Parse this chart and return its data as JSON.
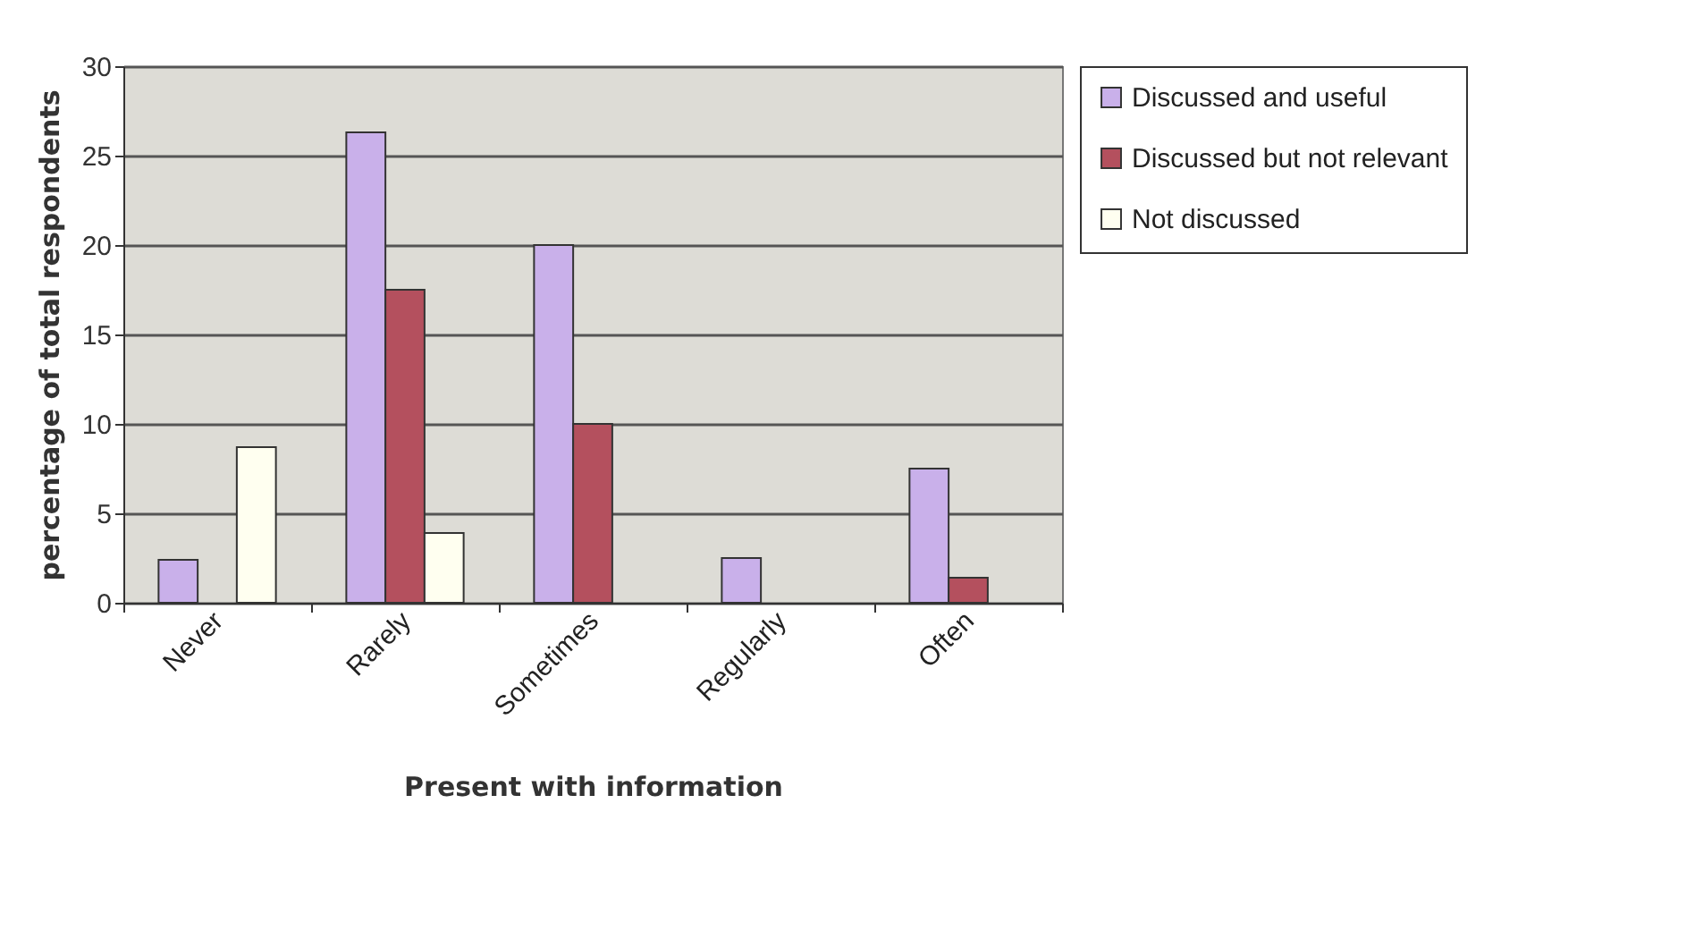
{
  "chart_data": {
    "type": "bar",
    "xlabel": "Present with information",
    "ylabel": "percentage of total respondents",
    "categories": [
      "Never",
      "Rarely",
      "Sometimes",
      "Regularly",
      "Often"
    ],
    "series": [
      {
        "name": "Discussed and useful",
        "color": "#c9b0ea",
        "values": [
          2.4,
          26.3,
          20,
          2.5,
          7.5
        ]
      },
      {
        "name": "Discussed but not relevant",
        "color": "#b4505e",
        "values": [
          null,
          17.5,
          10,
          null,
          1.4
        ]
      },
      {
        "name": "Not discussed",
        "color": "#fffff0",
        "values": [
          8.7,
          3.9,
          null,
          null,
          null
        ]
      }
    ],
    "ylim": [
      0,
      30
    ],
    "yticks": [
      0,
      5,
      10,
      15,
      20,
      25,
      30
    ],
    "grid": "y",
    "legend": "right"
  }
}
